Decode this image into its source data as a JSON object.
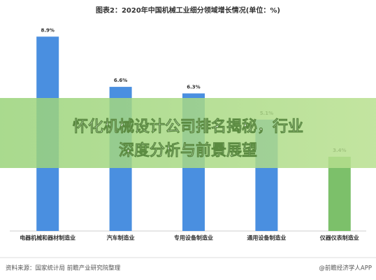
{
  "chart_data": {
    "type": "bar",
    "title": "图表2：2020年中国机械工业细分领域增长情况(单位：%)",
    "categories": [
      "电器机械和器材制造业",
      "汽车制造业",
      "专用设备制造业",
      "通用设备制造业",
      "仪器仪表制造业"
    ],
    "values": [
      8.9,
      6.6,
      6.3,
      5.1,
      3.4
    ],
    "value_labels": [
      "8.9%",
      "6.6%",
      "6.3%",
      "5.1%",
      "3.4%"
    ],
    "colors": [
      "#4a8fe0",
      "#4a8fe0",
      "#4a8fe0",
      "#4a8fe0",
      "#7cc06a"
    ],
    "source": "资料来源：国家统计局 前瞻产业研究院整理",
    "credit": "@前瞻经济学人APP"
  },
  "overlay": {
    "title_line1": "怀化机械设计公司排名揭秘，行业",
    "title_line2": "深度分析与前景展望"
  }
}
